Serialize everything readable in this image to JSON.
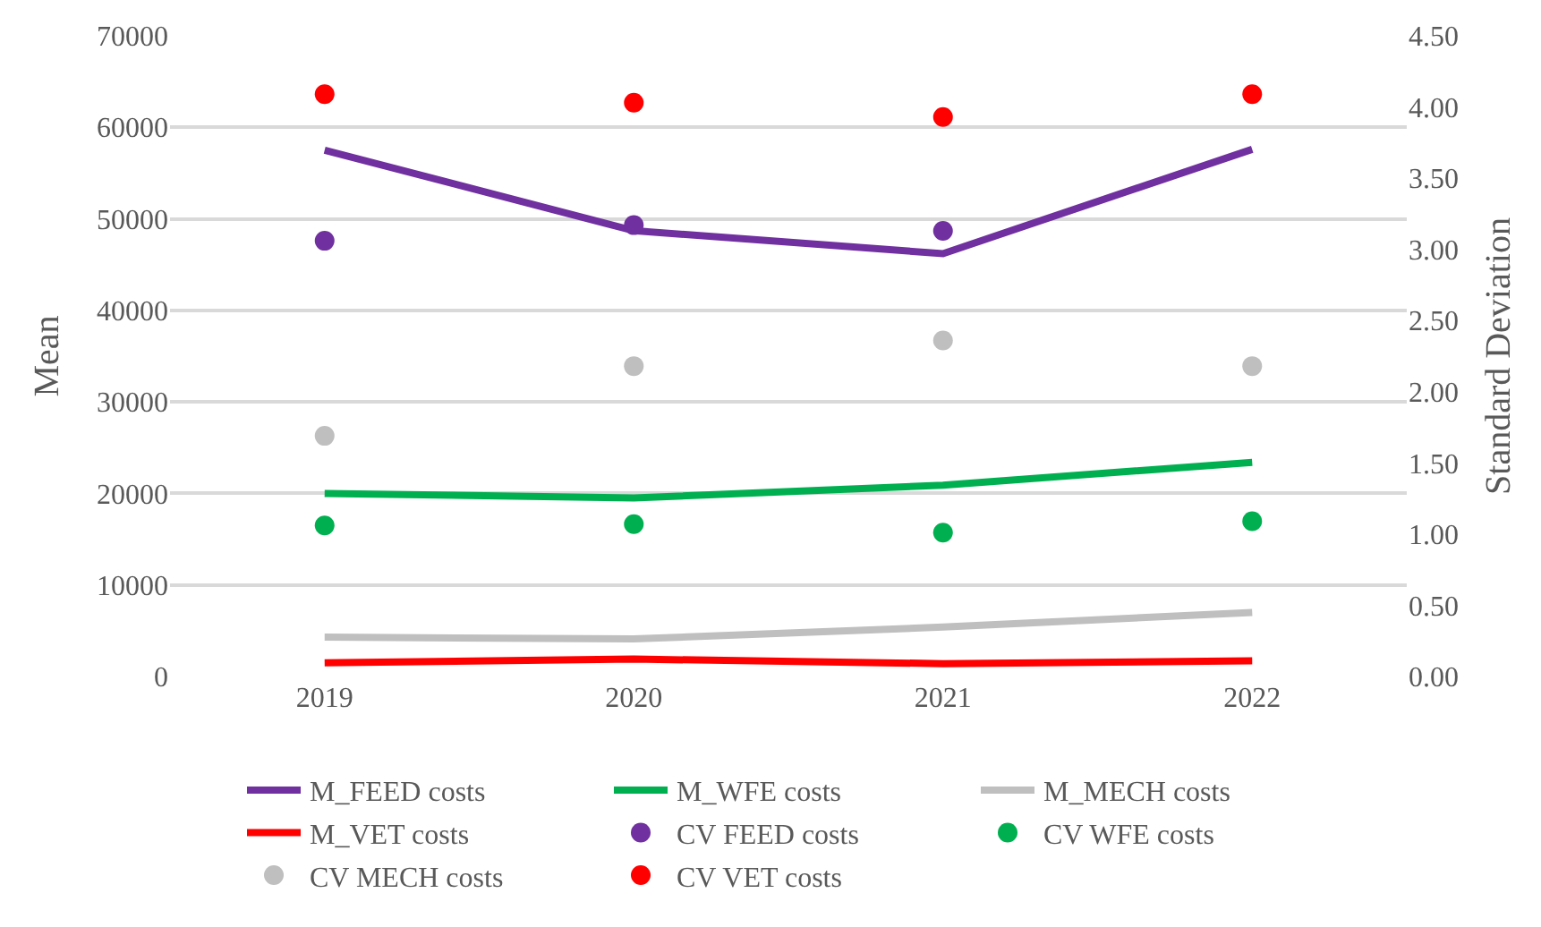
{
  "chart_data": {
    "type": "line",
    "ylabel": "Mean",
    "y2label": "Standard Deviation",
    "categories": [
      "2019",
      "2020",
      "2021",
      "2022"
    ],
    "ylim": [
      0,
      70000
    ],
    "yticks": [
      0,
      10000,
      20000,
      30000,
      40000,
      50000,
      60000,
      70000
    ],
    "y2lim": [
      0,
      4.5
    ],
    "y2ticks": [
      {
        "value": 0,
        "label": "0.00"
      },
      {
        "value": 0.5,
        "label": "0.50"
      },
      {
        "value": 1,
        "label": "1.00"
      },
      {
        "value": 1.5,
        "label": "1.50"
      },
      {
        "value": 2,
        "label": "2.00"
      },
      {
        "value": 2.5,
        "label": "2.50"
      },
      {
        "value": 3,
        "label": "3.00"
      },
      {
        "value": 3.5,
        "label": "3.50"
      },
      {
        "value": 4,
        "label": "4.00"
      },
      {
        "value": 4.5,
        "label": "4.50"
      }
    ],
    "grid": "y",
    "legend": "bottom",
    "marker": "none",
    "line_style": "solid",
    "series": [
      {
        "name": "M_FEED costs",
        "color": "#7030a0",
        "values": [
          57500,
          48700,
          46200,
          57600
        ]
      },
      {
        "name": "M_WFE costs",
        "color": "#00b050",
        "values": [
          20000,
          19500,
          20900,
          23400
        ]
      },
      {
        "name": "M_MECH costs",
        "color": "#bfbfbf",
        "values": [
          4300,
          4100,
          5400,
          7000
        ]
      },
      {
        "name": "M_VET costs",
        "color": "#ff0000",
        "values": [
          1500,
          1900,
          1400,
          1700
        ]
      },
      {
        "name": "CV FEED costs",
        "type": "scatter",
        "axis": "y2",
        "marker": "circle",
        "color": "#7030a0",
        "values": [
          3.06,
          3.17,
          3.13,
          null
        ]
      },
      {
        "name": "CV WFE costs",
        "type": "scatter",
        "axis": "y2",
        "marker": "circle",
        "color": "#00b050",
        "values": [
          1.06,
          1.07,
          1.01,
          1.09
        ]
      },
      {
        "name": "CV MECH costs",
        "type": "scatter",
        "axis": "y2",
        "marker": "circle",
        "color": "#bfbfbf",
        "values": [
          1.69,
          2.18,
          2.36,
          2.18
        ]
      },
      {
        "name": "CV VET costs",
        "type": "scatter",
        "axis": "y2",
        "marker": "circle",
        "color": "#ff0000",
        "values": [
          4.09,
          4.03,
          3.93,
          4.09
        ]
      }
    ]
  }
}
